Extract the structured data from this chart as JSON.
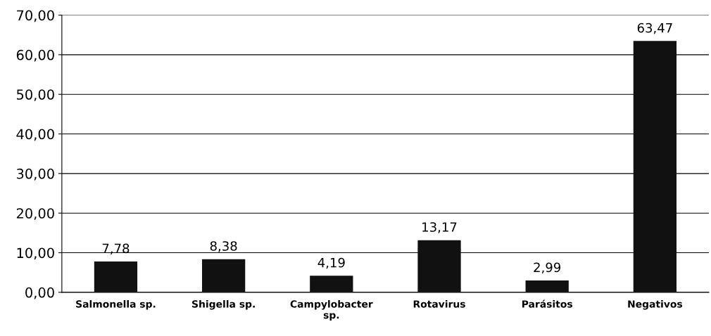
{
  "chart_data": {
    "type": "bar",
    "categories": [
      "Salmonella sp.",
      "Shigella sp.",
      "Campylobacter\nsp.",
      "Rotavirus",
      "Parásitos",
      "Negativos"
    ],
    "values": [
      7.78,
      8.38,
      4.19,
      13.17,
      2.99,
      63.47
    ],
    "value_labels": [
      "7,78",
      "8,38",
      "4,19",
      "13,17",
      "2,99",
      "63,47"
    ],
    "color": "#111111",
    "ylim": [
      0,
      70
    ],
    "yticks": [
      {
        "value": 0,
        "label": "0,00"
      },
      {
        "value": 10,
        "label": "10,00"
      },
      {
        "value": 20,
        "label": "20,00"
      },
      {
        "value": 30,
        "label": "30,00"
      },
      {
        "value": 40,
        "label": "40,00"
      },
      {
        "value": 50,
        "label": "50,00"
      },
      {
        "value": 60,
        "label": "60,00"
      },
      {
        "value": 70,
        "label": "70,00"
      }
    ],
    "grid": "y"
  }
}
